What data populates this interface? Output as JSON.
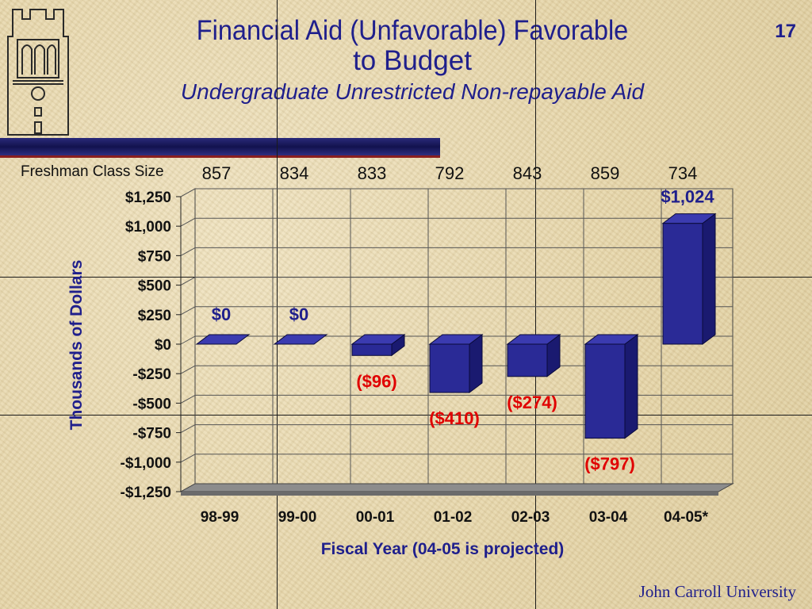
{
  "slide": {
    "title_line1": "Financial Aid (Unfavorable) Favorable",
    "title_line2": "to Budget",
    "subtitle": "Undergraduate Unrestricted Non-repayable Aid",
    "page_number": "17",
    "footer": "John Carroll University",
    "freshman_label": "Freshman Class Size",
    "freshman_sizes": [
      "857",
      "834",
      "833",
      "792",
      "843",
      "859",
      "734"
    ],
    "colors": {
      "title": "#1f1f8c",
      "bar": "#2a2a96",
      "positive_label": "#1f1f8c",
      "negative_label": "#e00000"
    }
  },
  "chart_data": {
    "type": "bar",
    "categories": [
      "98-99",
      "99-00",
      "00-01",
      "01-02",
      "02-03",
      "03-04",
      "04-05*"
    ],
    "values": [
      0,
      0,
      -96,
      -410,
      -274,
      -797,
      1024
    ],
    "data_labels": [
      "$0",
      "$0",
      "($96)",
      "($410)",
      "($274)",
      "($797)",
      "$1,024"
    ],
    "xlabel": "Fiscal Year (04-05 is projected)",
    "ylabel": "Thousands of Dollars",
    "ylim": [
      -1250,
      1250
    ],
    "yticks": [
      1250,
      1000,
      750,
      500,
      250,
      0,
      -250,
      -500,
      -750,
      -1000,
      -1250
    ],
    "ytick_labels": [
      "$1,250",
      "$1,000",
      "$750",
      "$500",
      "$250",
      "$0",
      "-$250",
      "-$500",
      "-$750",
      "-$1,000",
      "-$1,250"
    ],
    "grid": true,
    "style": "3d"
  }
}
